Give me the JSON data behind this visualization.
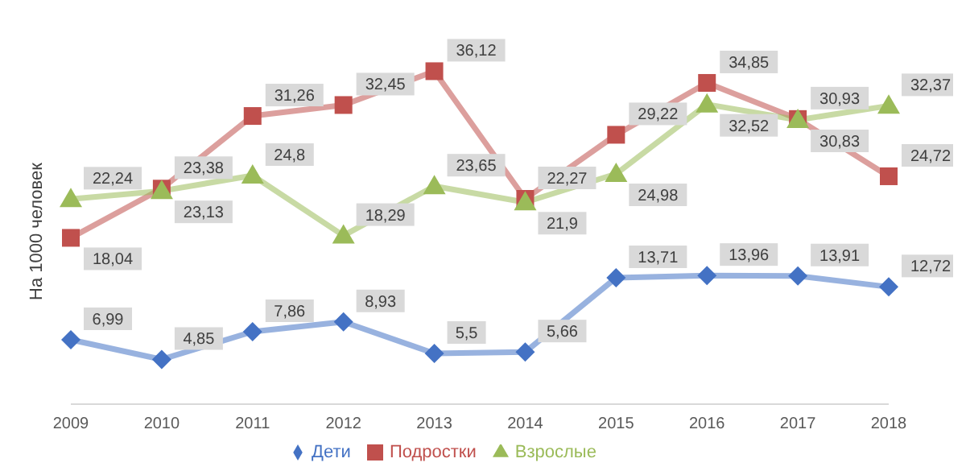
{
  "chart_data": {
    "type": "line",
    "ylabel": "На 1000 человек",
    "categories": [
      "2009",
      "2010",
      "2011",
      "2012",
      "2013",
      "2014",
      "2015",
      "2016",
      "2017",
      "2018"
    ],
    "legend": "bottom",
    "tick_labels": "x",
    "series": [
      {
        "name": "Дети",
        "color": "#4472c4",
        "marker": "diamond",
        "values": [
          6.99,
          4.85,
          7.86,
          8.93,
          5.5,
          5.66,
          13.71,
          13.96,
          13.91,
          12.72
        ],
        "value_labels": [
          "6,99",
          "4,85",
          "7,86",
          "8,93",
          "5,5",
          "5,66",
          "13,71",
          "13,96",
          "13,91",
          "12,72"
        ]
      },
      {
        "name": "Подростки",
        "color": "#c0504d",
        "marker": "square",
        "values": [
          18.04,
          23.38,
          31.26,
          32.45,
          36.12,
          22.27,
          29.22,
          34.85,
          30.93,
          24.72
        ],
        "value_labels": [
          "18,04",
          "23,38",
          "31,26",
          "32,45",
          "36,12",
          "22,27",
          "29,22",
          "34,85",
          "30,93",
          "24,72"
        ]
      },
      {
        "name": "Взрослые",
        "color": "#9bbb59",
        "marker": "triangle",
        "values": [
          22.24,
          23.13,
          24.8,
          18.29,
          23.65,
          21.9,
          24.98,
          32.52,
          30.83,
          32.37
        ],
        "value_labels": [
          "22,24",
          "23,13",
          "24,8",
          "18,29",
          "23,65",
          "21,9",
          "24,98",
          "32,52",
          "30,83",
          "32,37"
        ]
      }
    ]
  }
}
